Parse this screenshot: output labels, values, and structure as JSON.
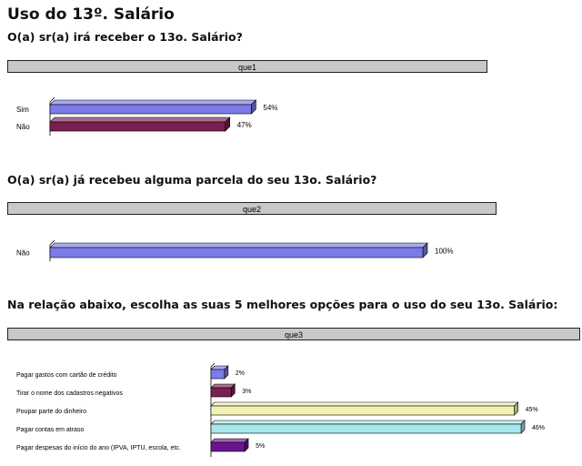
{
  "title": "Uso do 13º. Salário",
  "chart_data": [
    {
      "type": "bar",
      "question": "O(a) sr(a) irá receber o 13o. Salário?",
      "header": "que1",
      "categories": [
        "Sim",
        "Não"
      ],
      "values": [
        54,
        47
      ],
      "value_labels": [
        "54%",
        "47%"
      ],
      "colors": [
        "#7b7bea",
        "#7a1f52"
      ],
      "xlim": [
        0,
        100
      ]
    },
    {
      "type": "bar",
      "question": "O(a) sr(a) já recebeu alguma parcela do seu 13o. Salário?",
      "header": "que2",
      "categories": [
        "Não"
      ],
      "values": [
        100
      ],
      "value_labels": [
        "100%"
      ],
      "colors": [
        "#7b7bea"
      ],
      "xlim": [
        0,
        100
      ]
    },
    {
      "type": "bar",
      "question": "Na relação abaixo, escolha as suas 5 melhores opções para o uso do seu 13o. Salário:",
      "header": "que3",
      "categories": [
        "Pagar gastos com cartão de crédito",
        "Tirar o nome dos cadastros negativos",
        "Poupar parte do dinheiro",
        "Pagar contas em atraso",
        "Pagar despesas do início do ano (IPVA, IPTU, escola, etc."
      ],
      "values": [
        2,
        3,
        45,
        46,
        5
      ],
      "value_labels": [
        "2%",
        "3%",
        "45%",
        "46%",
        "5%"
      ],
      "colors": [
        "#7b7bea",
        "#7a1f52",
        "#f2f2b4",
        "#a6e6ea",
        "#6a1590"
      ],
      "xlim": [
        0,
        46
      ]
    }
  ]
}
